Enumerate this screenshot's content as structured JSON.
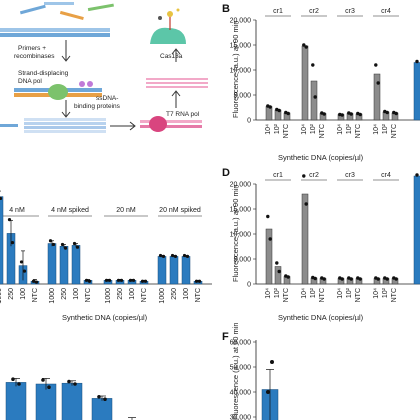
{
  "panel_labels": {
    "B": "B",
    "D": "D",
    "F": "F"
  },
  "schematic": {
    "primers": "Primers +",
    "recombinases": "recombinases",
    "strand1": "Strand-displacing",
    "strand2": "DNA pol",
    "ssdna1": "ssDNA-",
    "ssdna2": "binding proteins",
    "cas13": "Cas13a",
    "t7": "T7 RNA pol"
  },
  "colors": {
    "gray": "#8c8c8c",
    "blue": "#2b7bbf"
  },
  "chart_data": [
    {
      "id": "B",
      "type": "bar",
      "xlabel": "Synthetic DNA (copies/µl)",
      "ylabel": "Fluorescence (a.u.) at 90 min",
      "yticks": [
        "0",
        "5,000",
        "10,000",
        "15,000",
        "20,000"
      ],
      "ylim": [
        0,
        20000
      ],
      "group_categories": [
        "10⁴",
        "10²",
        "NTC"
      ],
      "groups": [
        {
          "name": "cr1",
          "values": [
            2700,
            2000,
            1400
          ],
          "points": [
            [
              2800,
              2600
            ],
            [
              2100,
              1900
            ],
            [
              1500,
              1300
            ]
          ]
        },
        {
          "name": "cr2",
          "values": [
            14800,
            7800,
            1300
          ],
          "points": [
            [
              15000,
              14600
            ],
            [
              11000,
              4600
            ],
            [
              1400,
              1200
            ]
          ]
        },
        {
          "name": "cr3",
          "values": [
            1100,
            1300,
            1200
          ],
          "points": [
            [
              1100,
              1000
            ],
            [
              1400,
              1200
            ],
            [
              1300,
              1100
            ]
          ]
        },
        {
          "name": "cr4",
          "values": [
            9200,
            1600,
            1400
          ],
          "points": [
            [
              11000,
              7400
            ],
            [
              1700,
              1500
            ],
            [
              1500,
              1300
            ]
          ]
        }
      ],
      "partial_blue_value": 11500
    },
    {
      "id": "C",
      "type": "bar",
      "xlabel": "Synthetic DNA (copies/µl)",
      "categories": [
        "1000",
        "250",
        "100",
        "NTC"
      ],
      "ymax": 100,
      "groups": [
        {
          "name": "4 nM",
          "values": [
            95,
            55,
            20,
            3
          ],
          "points": [
            [
              97,
              93
            ],
            [
              70,
              45
            ],
            [
              24,
              14
            ],
            [
              3,
              2
            ]
          ],
          "errors": [
            6,
            14,
            16,
            2
          ]
        },
        {
          "name": "4 nM spiked",
          "values": [
            44,
            41,
            42,
            4
          ],
          "points": [
            [
              47,
              43
            ],
            [
              43,
              39
            ],
            [
              44,
              40
            ],
            [
              4,
              3
            ]
          ],
          "errors": [
            3,
            2,
            2,
            1
          ]
        },
        {
          "name": "20 nM",
          "values": [
            4,
            4,
            4,
            3
          ],
          "points": [
            [
              4,
              4
            ],
            [
              4,
              4
            ],
            [
              4,
              4
            ],
            [
              3,
              3
            ]
          ],
          "errors": [
            1,
            1,
            1,
            1
          ]
        },
        {
          "name": "20 nM spiked",
          "values": [
            30,
            30,
            30,
            3
          ],
          "points": [
            [
              31,
              30
            ],
            [
              31,
              30
            ],
            [
              31,
              30
            ],
            [
              3,
              3
            ]
          ],
          "errors": [
            1,
            1,
            1,
            1
          ]
        }
      ]
    },
    {
      "id": "D",
      "type": "bar",
      "xlabel": "Synthetic DNA (copies/µl)",
      "ylabel": "Fluorescence (a.u.) at 90 min",
      "yticks": [
        "0",
        "5,000",
        "10,000",
        "15,000",
        "20,000"
      ],
      "ylim": [
        0,
        20000
      ],
      "group_categories": [
        "10⁴",
        "10²",
        "NTC"
      ],
      "groups": [
        {
          "name": "cr1",
          "values": [
            11000,
            3500,
            1500
          ],
          "points": [
            [
              13500,
              9000
            ],
            [
              4200,
              2500
            ],
            [
              1600,
              1400
            ]
          ]
        },
        {
          "name": "cr2",
          "values": [
            18000,
            1200,
            1100
          ],
          "points": [
            [
              22500,
              16000
            ],
            [
              1300,
              1100
            ],
            [
              1200,
              1000
            ]
          ]
        },
        {
          "name": "cr3",
          "values": [
            1100,
            1100,
            1100
          ],
          "points": [
            [
              1200,
              1000
            ],
            [
              1200,
              1000
            ],
            [
              1200,
              1000
            ]
          ]
        },
        {
          "name": "cr4",
          "values": [
            1100,
            1100,
            1100
          ],
          "points": [
            [
              1200,
              1000
            ],
            [
              1200,
              1000
            ],
            [
              1200,
              1000
            ]
          ]
        }
      ],
      "partial_blue_value": 23000
    },
    {
      "id": "E",
      "type": "bar",
      "values": [
        72,
        70,
        71,
        52,
        18
      ],
      "points": [
        [
          76,
          70
        ],
        [
          75,
          66
        ],
        [
          73,
          70
        ],
        [
          54,
          51
        ],
        [
          22,
          15
        ]
      ],
      "errors": [
        5,
        7,
        3,
        3,
        10
      ],
      "ymax": 100
    },
    {
      "id": "F",
      "type": "bar",
      "ylabel": "Fluorescence (a.u.) at 90 min",
      "yticks": [
        "30,000",
        "40,000",
        "50,000",
        "60,000"
      ],
      "ylim": [
        30000,
        60000
      ],
      "values": [
        41000
      ],
      "points": [
        [
          52000,
          40000
        ]
      ],
      "errors": [
        8000
      ]
    }
  ]
}
